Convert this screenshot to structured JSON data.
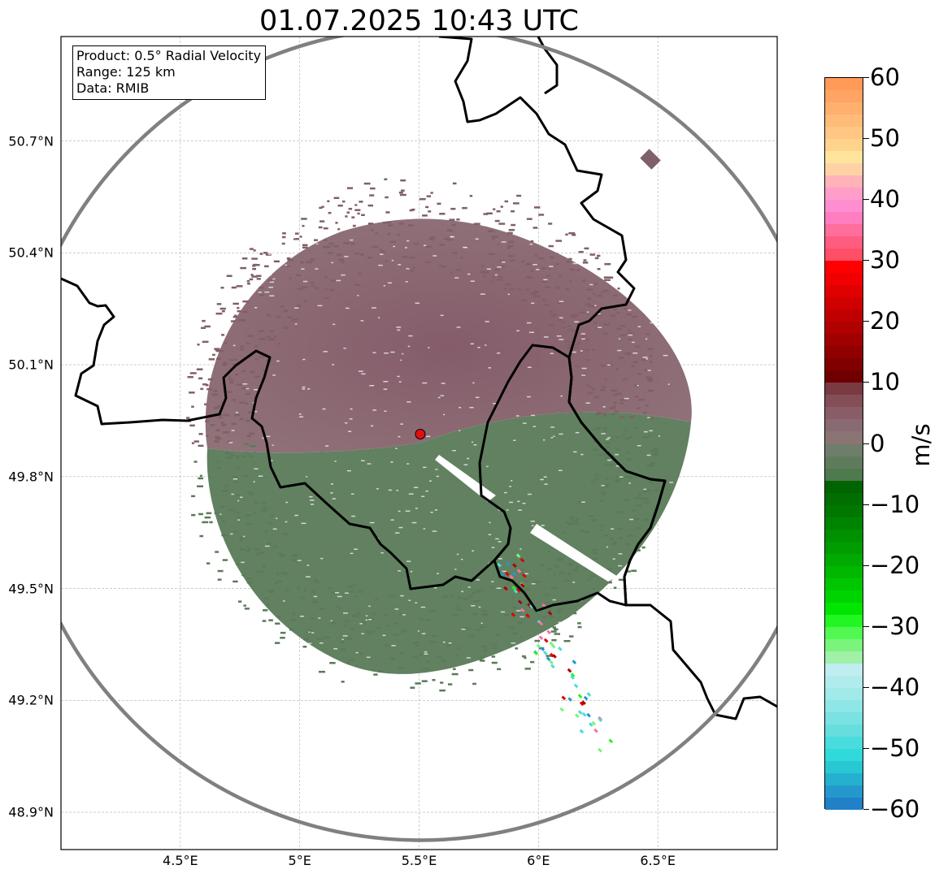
{
  "title": "01.07.2025 10:43 UTC",
  "info_box": {
    "product": "Product: 0.5° Radial Velocity",
    "range": "Range: 125 km",
    "data": "Data: RMIB"
  },
  "map": {
    "lon_range": [
      4.0,
      7.0
    ],
    "lat_range": [
      48.8,
      50.98
    ],
    "lon_ticks": [
      {
        "value": 4.5,
        "label": "4.5°E"
      },
      {
        "value": 5.0,
        "label": "5°E"
      },
      {
        "value": 5.5,
        "label": "5.5°E"
      },
      {
        "value": 6.0,
        "label": "6°E"
      },
      {
        "value": 6.5,
        "label": "6.5°E"
      }
    ],
    "lat_ticks": [
      {
        "value": 50.7,
        "label": "50.7°N"
      },
      {
        "value": 50.4,
        "label": "50.4°N"
      },
      {
        "value": 50.1,
        "label": "50.1°N"
      },
      {
        "value": 49.8,
        "label": "49.8°N"
      },
      {
        "value": 49.5,
        "label": "49.5°N"
      },
      {
        "value": 49.2,
        "label": "49.2°N"
      },
      {
        "value": 48.9,
        "label": "48.9°N"
      }
    ],
    "radar_site": {
      "lon": 5.505,
      "lat": 49.914
    },
    "range_km": 125,
    "colors": {
      "range_ring": "#808080",
      "borders": "#000000",
      "grid": "#b0b0b0",
      "radar_marker": "#e01010",
      "approaching": "#5a7a5a",
      "receding": "#806068"
    }
  },
  "colorbar": {
    "label": "m/s",
    "min": -60,
    "max": 60,
    "ticks": [
      {
        "value": 60,
        "label": "60"
      },
      {
        "value": 50,
        "label": "50"
      },
      {
        "value": 40,
        "label": "40"
      },
      {
        "value": 30,
        "label": "30"
      },
      {
        "value": 20,
        "label": "20"
      },
      {
        "value": 10,
        "label": "10"
      },
      {
        "value": 0,
        "label": "0"
      },
      {
        "value": -10,
        "label": "−10"
      },
      {
        "value": -20,
        "label": "−20"
      },
      {
        "value": -30,
        "label": "−30"
      },
      {
        "value": -40,
        "label": "−40"
      },
      {
        "value": -50,
        "label": "−50"
      },
      {
        "value": -60,
        "label": "−60"
      }
    ],
    "stops": [
      {
        "from": 58,
        "to": 60,
        "color": "#ff9a58"
      },
      {
        "from": 56,
        "to": 58,
        "color": "#ffa464"
      },
      {
        "from": 54,
        "to": 56,
        "color": "#ffb06e"
      },
      {
        "from": 52,
        "to": 54,
        "color": "#ffbc78"
      },
      {
        "from": 50,
        "to": 52,
        "color": "#ffc684"
      },
      {
        "from": 48,
        "to": 50,
        "color": "#ffd38c"
      },
      {
        "from": 46,
        "to": 48,
        "color": "#ffe59c"
      },
      {
        "from": 44,
        "to": 46,
        "color": "#ffd2a6"
      },
      {
        "from": 42,
        "to": 44,
        "color": "#ffb2b8"
      },
      {
        "from": 40,
        "to": 42,
        "color": "#ff9ec8"
      },
      {
        "from": 38,
        "to": 40,
        "color": "#ff8ed0"
      },
      {
        "from": 36,
        "to": 38,
        "color": "#ff7ec0"
      },
      {
        "from": 34,
        "to": 36,
        "color": "#ff6e9c"
      },
      {
        "from": 32,
        "to": 34,
        "color": "#ff5c80"
      },
      {
        "from": 30,
        "to": 32,
        "color": "#ff4e66"
      },
      {
        "from": 28,
        "to": 30,
        "color": "#ff0000"
      },
      {
        "from": 26,
        "to": 28,
        "color": "#f00000"
      },
      {
        "from": 24,
        "to": 26,
        "color": "#e00000"
      },
      {
        "from": 22,
        "to": 24,
        "color": "#d00000"
      },
      {
        "from": 20,
        "to": 22,
        "color": "#c00000"
      },
      {
        "from": 18,
        "to": 20,
        "color": "#b00000"
      },
      {
        "from": 16,
        "to": 18,
        "color": "#a00000"
      },
      {
        "from": 14,
        "to": 16,
        "color": "#900000"
      },
      {
        "from": 12,
        "to": 14,
        "color": "#800000"
      },
      {
        "from": 10,
        "to": 12,
        "color": "#700000"
      },
      {
        "from": 8,
        "to": 10,
        "color": "#7a3a42"
      },
      {
        "from": 6,
        "to": 8,
        "color": "#844e56"
      },
      {
        "from": 4,
        "to": 6,
        "color": "#8a5c66"
      },
      {
        "from": 2,
        "to": 4,
        "color": "#8a6a72"
      },
      {
        "from": 0,
        "to": 2,
        "color": "#8a7474"
      },
      {
        "from": -2,
        "to": 0,
        "color": "#6e7e6a"
      },
      {
        "from": -4,
        "to": -2,
        "color": "#5e7c5c"
      },
      {
        "from": -6,
        "to": -4,
        "color": "#4e7a4e"
      },
      {
        "from": -8,
        "to": -6,
        "color": "#006400"
      },
      {
        "from": -10,
        "to": -8,
        "color": "#006e00"
      },
      {
        "from": -12,
        "to": -10,
        "color": "#007800"
      },
      {
        "from": -14,
        "to": -12,
        "color": "#008400"
      },
      {
        "from": -16,
        "to": -14,
        "color": "#009000"
      },
      {
        "from": -18,
        "to": -16,
        "color": "#009c00"
      },
      {
        "from": -20,
        "to": -18,
        "color": "#00aa00"
      },
      {
        "from": -22,
        "to": -20,
        "color": "#00b800"
      },
      {
        "from": -24,
        "to": -22,
        "color": "#00c600"
      },
      {
        "from": -26,
        "to": -24,
        "color": "#00d400"
      },
      {
        "from": -28,
        "to": -26,
        "color": "#00e600"
      },
      {
        "from": -30,
        "to": -28,
        "color": "#22f622"
      },
      {
        "from": -32,
        "to": -30,
        "color": "#52f852"
      },
      {
        "from": -34,
        "to": -32,
        "color": "#7af47a"
      },
      {
        "from": -36,
        "to": -34,
        "color": "#a0f0a8"
      },
      {
        "from": -38,
        "to": -36,
        "color": "#c0eef0"
      },
      {
        "from": -40,
        "to": -38,
        "color": "#b0ecee"
      },
      {
        "from": -42,
        "to": -40,
        "color": "#a0eaea"
      },
      {
        "from": -44,
        "to": -42,
        "color": "#8ee6e6"
      },
      {
        "from": -46,
        "to": -44,
        "color": "#7ae2e2"
      },
      {
        "from": -48,
        "to": -46,
        "color": "#66dede"
      },
      {
        "from": -50,
        "to": -48,
        "color": "#4adcdc"
      },
      {
        "from": -52,
        "to": -50,
        "color": "#30dada"
      },
      {
        "from": -54,
        "to": -52,
        "color": "#28c8d2"
      },
      {
        "from": -56,
        "to": -54,
        "color": "#26b0d0"
      },
      {
        "from": -58,
        "to": -56,
        "color": "#2498cc"
      },
      {
        "from": -60,
        "to": -58,
        "color": "#2080c8"
      }
    ]
  }
}
